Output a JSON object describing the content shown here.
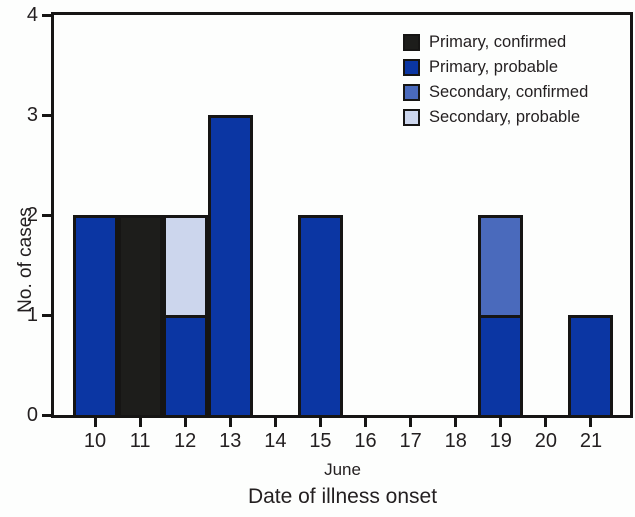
{
  "chart_data": {
    "type": "bar",
    "stacked": true,
    "title": "",
    "xlabel": "Date of illness onset",
    "x_month_label": "June",
    "ylabel": "No. of cases",
    "ylim": [
      0,
      4
    ],
    "yticks": [
      0,
      1,
      2,
      3,
      4
    ],
    "grid": false,
    "legend_position": "top-right-inside",
    "categories": [
      "10",
      "11",
      "12",
      "13",
      "14",
      "15",
      "16",
      "17",
      "18",
      "19",
      "20",
      "21"
    ],
    "series": [
      {
        "name": "Primary, confirmed",
        "color": "#1d1d1b",
        "values": [
          0,
          2,
          0,
          0,
          0,
          0,
          0,
          0,
          0,
          0,
          0,
          0
        ]
      },
      {
        "name": "Primary, probable",
        "color": "#0b36a3",
        "values": [
          2,
          0,
          1,
          3,
          0,
          2,
          0,
          0,
          0,
          1,
          0,
          1
        ]
      },
      {
        "name": "Secondary, confirmed",
        "color": "#4a6abc",
        "values": [
          0,
          0,
          0,
          0,
          0,
          0,
          0,
          0,
          0,
          1,
          0,
          0
        ]
      },
      {
        "name": "Secondary, probable",
        "color": "#ccd6ed",
        "values": [
          0,
          0,
          1,
          0,
          0,
          0,
          0,
          0,
          0,
          0,
          0,
          0
        ]
      }
    ],
    "colors": {
      "axis": "#161514",
      "text": "#231f20",
      "background": "#fdfefd"
    }
  }
}
